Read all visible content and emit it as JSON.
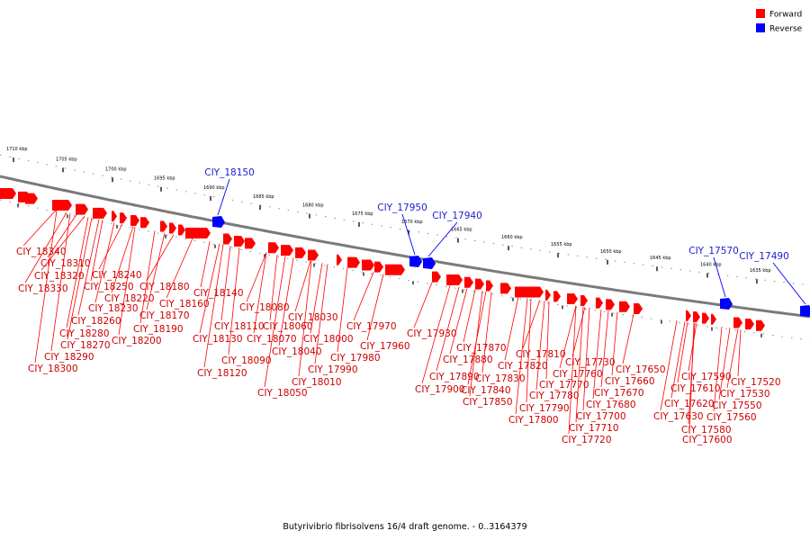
{
  "colors": {
    "forward": "#ff0000",
    "reverse": "#0000ff",
    "backbone": "#7a7a7a",
    "forward_label": "#cc0000",
    "reverse_label": "#1c1cd2"
  },
  "legend": [
    {
      "label": "Forward",
      "color": "#ff0000"
    },
    {
      "label": "Reverse",
      "color": "#0000ff"
    }
  ],
  "caption": "Butyrivibrio fibrisolvens 16/4 draft genome. - 0..3164379",
  "scale_ticks": [
    {
      "kbp": 1710,
      "label": "1710 kbp"
    },
    {
      "kbp": 1705,
      "label": "1705 kbp"
    },
    {
      "kbp": 1700,
      "label": "1700 kbp"
    },
    {
      "kbp": 1695,
      "label": "1695 kbp"
    },
    {
      "kbp": 1690,
      "label": "1690 kbp"
    },
    {
      "kbp": 1685,
      "label": "1685 kbp"
    },
    {
      "kbp": 1680,
      "label": "1680 kbp"
    },
    {
      "kbp": 1675,
      "label": "1675 kbp"
    },
    {
      "kbp": 1670,
      "label": "1670 kbp"
    },
    {
      "kbp": 1665,
      "label": "1665 kbp"
    },
    {
      "kbp": 1660,
      "label": "1660 kbp"
    },
    {
      "kbp": 1655,
      "label": "1655 kbp"
    },
    {
      "kbp": 1650,
      "label": "1650 kbp"
    },
    {
      "kbp": 1645,
      "label": "1645 kbp"
    },
    {
      "kbp": 1640,
      "label": "1640 kbp"
    },
    {
      "kbp": 1635,
      "label": "1635 kbp"
    }
  ],
  "reverse_genes": [
    "CIY_18150",
    "CIY_17950",
    "CIY_17940",
    "CIY_17570",
    "CIY_17490"
  ],
  "forward_genes": [
    "CIY_18340",
    "CIY_18310",
    "CIY_18320",
    "CIY_18330",
    "CIY_18240",
    "CIY_18250",
    "CIY_18220",
    "CIY_18230",
    "CIY_18260",
    "CIY_18280",
    "CIY_18270",
    "CIY_18290",
    "CIY_18300",
    "CIY_18180",
    "CIY_18160",
    "CIY_18170",
    "CIY_18190",
    "CIY_18200",
    "CIY_18140",
    "CIY_18110",
    "CIY_18130",
    "CIY_18120",
    "CIY_18090",
    "CIY_18080",
    "CIY_18060",
    "CIY_18070",
    "CIY_18030",
    "CIY_18040",
    "CIY_18050",
    "CIY_18000",
    "CIY_18010",
    "CIY_17990",
    "CIY_17980",
    "CIY_17970",
    "CIY_17960",
    "CIY_17930",
    "CIY_17870",
    "CIY_17880",
    "CIY_17890",
    "CIY_17900",
    "CIY_17830",
    "CIY_17840",
    "CIY_17850",
    "CIY_17820",
    "CIY_17810",
    "CIY_17770",
    "CIY_17780",
    "CIY_17790",
    "CIY_17800",
    "CIY_17760",
    "CIY_17730",
    "CIY_17700",
    "CIY_17710",
    "CIY_17720",
    "CIY_17680",
    "CIY_17670",
    "CIY_17660",
    "CIY_17650",
    "CIY_17590",
    "CIY_17610",
    "CIY_17620",
    "CIY_17630",
    "CIY_17580",
    "CIY_17600",
    "CIY_17520",
    "CIY_17530",
    "CIY_17550",
    "CIY_17560"
  ]
}
